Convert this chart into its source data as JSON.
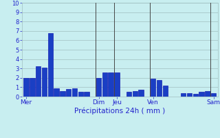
{
  "values": [
    2.0,
    2.0,
    3.2,
    3.1,
    6.8,
    0.9,
    0.6,
    0.8,
    0.9,
    0.5,
    0.5,
    0.0,
    2.0,
    2.6,
    2.6,
    2.6,
    0.0,
    0.5,
    0.6,
    0.7,
    0.0,
    1.9,
    1.8,
    1.2,
    0.0,
    0.0,
    0.4,
    0.4,
    0.3,
    0.5,
    0.6,
    0.4
  ],
  "day_labels": [
    "Mer",
    "Dim",
    "Jeu",
    "Ven",
    "Sam"
  ],
  "day_positions": [
    0,
    12,
    15,
    21,
    31
  ],
  "bar_color": "#1a3fc4",
  "bar_edge_color": "#0000aa",
  "bg_color": "#c8eef0",
  "grid_color": "#a0c0c0",
  "xlabel": "Précipitations 24h ( mm )",
  "ylim": [
    0,
    10
  ],
  "yticks": [
    0,
    1,
    2,
    3,
    4,
    5,
    6,
    7,
    8,
    9,
    10
  ],
  "xlabel_color": "#2222cc",
  "tick_color": "#2222cc",
  "vline_color": "#444444",
  "figsize": [
    3.2,
    2.0
  ],
  "dpi": 100
}
